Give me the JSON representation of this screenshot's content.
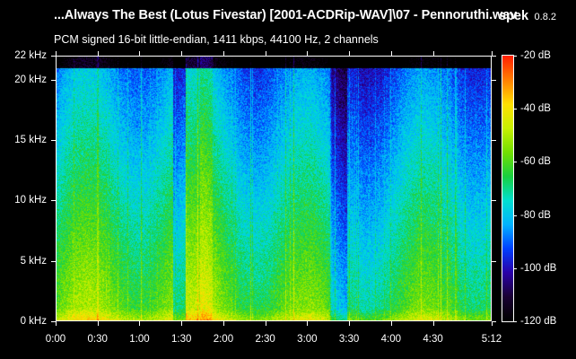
{
  "window": {
    "file_title": "...Always The Best (Lotus Fivestar) [2001-ACDRip-WAV]\\07 - Pennoruthi.wav",
    "app_name": "spek",
    "app_version": "0.8.2"
  },
  "audio_info": {
    "format_text": "PCM signed 16-bit little-endian, 1411 kbps, 44100 Hz, 2 channels"
  },
  "spectrogram": {
    "duration_label": "5:12",
    "frequency_axis": {
      "max_khz": 22,
      "ticks": [
        {
          "value_khz": 22,
          "label": "22 kHz"
        },
        {
          "value_khz": 20,
          "label": "20 kHz"
        },
        {
          "value_khz": 15,
          "label": "15 kHz"
        },
        {
          "value_khz": 10,
          "label": "10 kHz"
        },
        {
          "value_khz": 5,
          "label": "5 kHz"
        },
        {
          "value_khz": 0,
          "label": "0 kHz"
        }
      ]
    },
    "time_axis": {
      "total_seconds": 312,
      "ticks": [
        {
          "seconds": 0,
          "label": "0:00"
        },
        {
          "seconds": 30,
          "label": "0:30"
        },
        {
          "seconds": 60,
          "label": "1:00"
        },
        {
          "seconds": 90,
          "label": "1:30"
        },
        {
          "seconds": 120,
          "label": "2:00"
        },
        {
          "seconds": 150,
          "label": "2:30"
        },
        {
          "seconds": 180,
          "label": "3:00"
        },
        {
          "seconds": 210,
          "label": "3:30"
        },
        {
          "seconds": 240,
          "label": "4:00"
        },
        {
          "seconds": 270,
          "label": "4:30"
        },
        {
          "seconds": 312,
          "label": "5:12"
        }
      ]
    },
    "level_scale": {
      "min_db": -120,
      "max_db": -20,
      "ticks": [
        {
          "db": -20,
          "label": "-20 dB"
        },
        {
          "db": -40,
          "label": "-40 dB"
        },
        {
          "db": -60,
          "label": "-60 dB"
        },
        {
          "db": -80,
          "label": "-80 dB"
        },
        {
          "db": -100,
          "label": "-100 dB"
        },
        {
          "db": -120,
          "label": "-120 dB"
        }
      ]
    },
    "colors": {
      "background": "#000000",
      "foreground": "#ffffff",
      "palette": [
        "#000000",
        "#1a0033",
        "#2b00a8",
        "#0040ff",
        "#00b4ff",
        "#00e0d0",
        "#19d040",
        "#73e000",
        "#c8f000",
        "#ffe000",
        "#ff8000",
        "#ff2000"
      ]
    }
  }
}
